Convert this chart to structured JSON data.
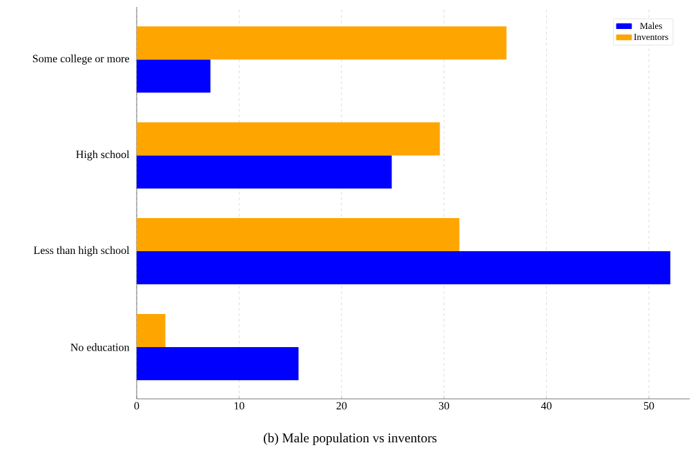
{
  "chart_data": {
    "type": "bar",
    "orientation": "horizontal",
    "title": "(b) Male population vs inventors",
    "categories": [
      "Some college or more",
      "High school",
      "Less than high school",
      "No education"
    ],
    "series": [
      {
        "name": "Males",
        "color": "#0000ff",
        "values": [
          7.2,
          24.9,
          52.1,
          15.8
        ]
      },
      {
        "name": "Inventors",
        "color": "#ffa500",
        "values": [
          36.1,
          29.6,
          31.5,
          2.8
        ]
      }
    ],
    "xlim": [
      0,
      54
    ],
    "xticks": [
      0,
      10,
      20,
      30,
      40,
      50
    ],
    "grid": "x",
    "legend": "top right"
  }
}
